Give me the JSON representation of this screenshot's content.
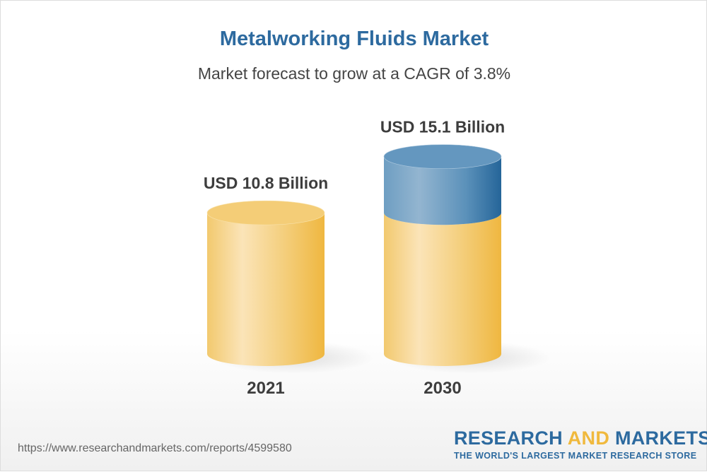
{
  "chart_data": {
    "type": "bar",
    "title": "Metalworking Fluids Market",
    "subtitle": "Market forecast to grow at a CAGR of 3.8%",
    "categories": [
      "2021",
      "2030"
    ],
    "values": [
      10.8,
      15.1
    ],
    "data_labels": [
      "USD 10.8 Billion",
      "USD 15.1 Billion"
    ],
    "unit": "USD Billion",
    "style": "3d-cylinder",
    "colors": {
      "base": "#f2c35a",
      "growth": "#2d6a9f"
    }
  },
  "footer": {
    "url": "https://www.researchandmarkets.com/reports/4599580",
    "logo_part1": "RESEARCH",
    "logo_part2": "AND",
    "logo_part3": "MARKETS",
    "tagline": "THE WORLD'S LARGEST MARKET RESEARCH STORE"
  }
}
